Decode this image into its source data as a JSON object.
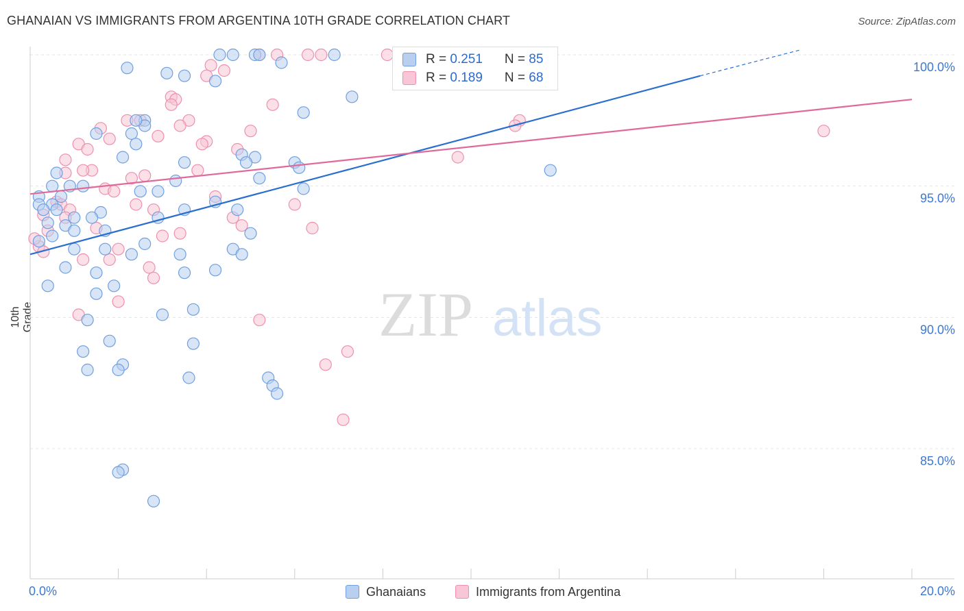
{
  "title": "GHANAIAN VS IMMIGRANTS FROM ARGENTINA 10TH GRADE CORRELATION CHART",
  "source": "Source: ZipAtlas.com",
  "watermark": {
    "zip": "ZIP",
    "atlas": "atlas"
  },
  "stats": [
    {
      "r_label": "R = ",
      "r_value": "0.251",
      "n_label": "N = ",
      "n_value": "85"
    },
    {
      "r_label": "R = ",
      "r_value": "0.189",
      "n_label": "N = ",
      "n_value": "68"
    }
  ],
  "legend": {
    "ghanaians": "Ghanaians",
    "argentina": "Immigrants from Argentina"
  },
  "colors": {
    "blue_fill": "#b8cff0",
    "blue_stroke": "#6f9fe0",
    "blue_line": "#2a6fd0",
    "pink_fill": "#f8c6d6",
    "pink_stroke": "#ee8fb0",
    "pink_line": "#e0699a",
    "axis_text": "#3d78d0",
    "grid": "#e4e4e4"
  },
  "chart_data": {
    "type": "scatter",
    "title": "GHANAIAN VS IMMIGRANTS FROM ARGENTINA 10TH GRADE CORRELATION CHART",
    "xlabel": "",
    "ylabel": "10th Grade",
    "xlim": [
      0,
      20
    ],
    "ylim": [
      80.5,
      100.8
    ],
    "x_tick_labels": [
      {
        "value": 0,
        "label": "0.0%"
      },
      {
        "value": 20,
        "label": "20.0%"
      }
    ],
    "y_tick_labels": [
      {
        "value": 85,
        "label": "85.0%"
      },
      {
        "value": 90,
        "label": "90.0%"
      },
      {
        "value": 95,
        "label": "95.0%"
      },
      {
        "value": 100,
        "label": "100.0%"
      }
    ],
    "series": [
      {
        "name": "Ghanaians",
        "R": 0.251,
        "N": 85,
        "trend": {
          "x0": 0,
          "y0": 92.4,
          "x1": 15.2,
          "y1": 99.2,
          "dash_to_x": 17.5,
          "dash_to_y": 100.2
        },
        "points": [
          [
            4.3,
            100.0
          ],
          [
            4.6,
            100.0
          ],
          [
            5.1,
            100.0
          ],
          [
            5.2,
            100.0
          ],
          [
            6.9,
            100.0
          ],
          [
            5.7,
            99.7
          ],
          [
            2.2,
            99.5
          ],
          [
            3.1,
            99.3
          ],
          [
            3.5,
            99.2
          ],
          [
            4.2,
            99.0
          ],
          [
            7.3,
            98.4
          ],
          [
            6.2,
            97.8
          ],
          [
            2.6,
            97.5
          ],
          [
            2.6,
            97.3
          ],
          [
            2.4,
            97.5
          ],
          [
            2.3,
            97.0
          ],
          [
            1.5,
            97.0
          ],
          [
            2.4,
            96.6
          ],
          [
            2.1,
            96.1
          ],
          [
            4.8,
            96.2
          ],
          [
            5.1,
            96.1
          ],
          [
            4.9,
            95.9
          ],
          [
            3.5,
            95.9
          ],
          [
            6.0,
            95.9
          ],
          [
            6.1,
            95.7
          ],
          [
            0.6,
            95.5
          ],
          [
            3.3,
            95.2
          ],
          [
            5.2,
            95.3
          ],
          [
            0.5,
            95.0
          ],
          [
            0.9,
            95.0
          ],
          [
            1.2,
            95.0
          ],
          [
            2.9,
            94.8
          ],
          [
            2.5,
            94.8
          ],
          [
            6.2,
            94.9
          ],
          [
            0.2,
            94.6
          ],
          [
            0.7,
            94.6
          ],
          [
            11.8,
            95.6
          ],
          [
            0.2,
            94.3
          ],
          [
            0.5,
            94.3
          ],
          [
            4.2,
            94.4
          ],
          [
            4.7,
            94.1
          ],
          [
            3.5,
            94.1
          ],
          [
            0.3,
            94.1
          ],
          [
            0.6,
            94.1
          ],
          [
            1.6,
            94.0
          ],
          [
            1.4,
            93.8
          ],
          [
            1.0,
            93.8
          ],
          [
            2.9,
            93.8
          ],
          [
            0.4,
            93.6
          ],
          [
            0.8,
            93.5
          ],
          [
            1.0,
            93.3
          ],
          [
            1.7,
            93.3
          ],
          [
            5.0,
            93.2
          ],
          [
            0.5,
            93.1
          ],
          [
            0.2,
            92.9
          ],
          [
            2.6,
            92.8
          ],
          [
            1.7,
            92.6
          ],
          [
            4.6,
            92.6
          ],
          [
            1.0,
            92.6
          ],
          [
            2.3,
            92.4
          ],
          [
            3.4,
            92.4
          ],
          [
            4.8,
            92.4
          ],
          [
            0.8,
            91.9
          ],
          [
            4.2,
            91.8
          ],
          [
            1.5,
            91.7
          ],
          [
            3.5,
            91.7
          ],
          [
            0.4,
            91.2
          ],
          [
            1.9,
            91.2
          ],
          [
            1.5,
            90.9
          ],
          [
            3.7,
            90.3
          ],
          [
            3.0,
            90.1
          ],
          [
            1.3,
            89.9
          ],
          [
            1.8,
            89.1
          ],
          [
            3.7,
            89.0
          ],
          [
            1.2,
            88.7
          ],
          [
            2.1,
            88.2
          ],
          [
            1.3,
            88.0
          ],
          [
            2.0,
            88.0
          ],
          [
            5.4,
            87.7
          ],
          [
            3.6,
            87.7
          ],
          [
            5.5,
            87.4
          ],
          [
            5.6,
            87.1
          ],
          [
            2.1,
            84.2
          ],
          [
            2.0,
            84.1
          ],
          [
            2.8,
            83.0
          ]
        ]
      },
      {
        "name": "Immigrants from Argentina",
        "R": 0.189,
        "N": 68,
        "trend": {
          "x0": 0,
          "y0": 94.7,
          "x1": 20,
          "y1": 98.3
        },
        "points": [
          [
            5.2,
            100.0
          ],
          [
            5.6,
            100.0
          ],
          [
            6.3,
            100.0
          ],
          [
            6.6,
            100.0
          ],
          [
            8.1,
            100.0
          ],
          [
            4.1,
            99.6
          ],
          [
            4.4,
            99.4
          ],
          [
            4.0,
            99.2
          ],
          [
            3.2,
            98.4
          ],
          [
            3.3,
            98.3
          ],
          [
            3.2,
            98.1
          ],
          [
            5.5,
            98.1
          ],
          [
            2.2,
            97.5
          ],
          [
            2.5,
            97.5
          ],
          [
            3.6,
            97.5
          ],
          [
            3.4,
            97.3
          ],
          [
            11.1,
            97.5
          ],
          [
            11.0,
            97.3
          ],
          [
            1.6,
            97.2
          ],
          [
            5.0,
            97.1
          ],
          [
            18.0,
            97.1
          ],
          [
            2.9,
            96.9
          ],
          [
            1.8,
            96.8
          ],
          [
            4.0,
            96.7
          ],
          [
            3.9,
            96.6
          ],
          [
            1.1,
            96.6
          ],
          [
            4.7,
            96.4
          ],
          [
            1.3,
            96.4
          ],
          [
            9.7,
            96.1
          ],
          [
            0.8,
            96.0
          ],
          [
            1.4,
            95.6
          ],
          [
            3.8,
            95.6
          ],
          [
            1.2,
            95.6
          ],
          [
            0.8,
            95.5
          ],
          [
            2.6,
            95.4
          ],
          [
            2.3,
            95.3
          ],
          [
            1.7,
            94.9
          ],
          [
            1.9,
            94.8
          ],
          [
            4.2,
            94.6
          ],
          [
            0.6,
            94.4
          ],
          [
            0.7,
            94.3
          ],
          [
            2.4,
            94.3
          ],
          [
            6.0,
            94.3
          ],
          [
            0.9,
            94.1
          ],
          [
            2.8,
            94.1
          ],
          [
            0.8,
            93.8
          ],
          [
            4.6,
            93.8
          ],
          [
            4.8,
            93.5
          ],
          [
            1.5,
            93.4
          ],
          [
            6.4,
            93.4
          ],
          [
            0.4,
            93.3
          ],
          [
            3.4,
            93.2
          ],
          [
            3.0,
            93.1
          ],
          [
            0.2,
            92.7
          ],
          [
            0.3,
            92.5
          ],
          [
            2.0,
            92.6
          ],
          [
            1.8,
            92.2
          ],
          [
            1.2,
            92.2
          ],
          [
            2.7,
            91.9
          ],
          [
            2.8,
            91.5
          ],
          [
            2.0,
            90.6
          ],
          [
            1.1,
            90.1
          ],
          [
            5.2,
            89.9
          ],
          [
            7.2,
            88.7
          ],
          [
            6.7,
            88.2
          ],
          [
            7.1,
            86.1
          ],
          [
            0.1,
            93.0
          ],
          [
            0.3,
            93.9
          ]
        ]
      }
    ]
  }
}
